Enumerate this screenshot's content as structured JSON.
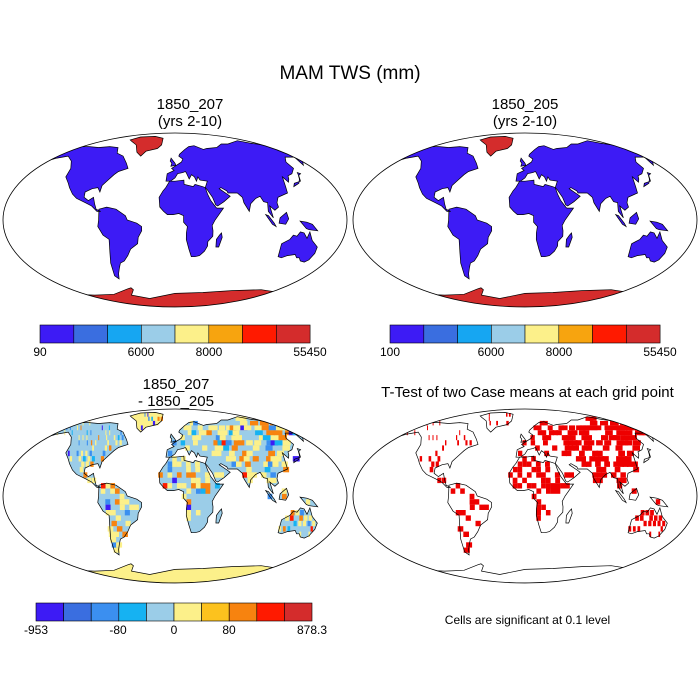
{
  "title": "MAM TWS (mm)",
  "panels": [
    {
      "id": "p1",
      "title_lines": [
        "1850_207",
        "(yrs 2-10)"
      ]
    },
    {
      "id": "p2",
      "title_lines": [
        "1850_205",
        "(yrs 2-10)"
      ]
    },
    {
      "id": "p3",
      "title_lines": [
        "1850_207",
        "- 1850_205"
      ]
    },
    {
      "id": "p4",
      "title_lines": [
        "T-Test of two Case means at each grid point"
      ]
    }
  ],
  "significance_note": "Cells are significant at 0.1 level",
  "chart_data": [
    {
      "type": "heatmap",
      "title": "1850_207 (yrs 2-10)",
      "colorbar": {
        "colors": [
          "#3d1bf5",
          "#3a6ee0",
          "#16a6f2",
          "#9bcde8",
          "#fcf08a",
          "#f7a40f",
          "#ff1a00",
          "#d42c2c"
        ],
        "tick_labels": [
          "90",
          "6000",
          "8000",
          "55450"
        ]
      }
    },
    {
      "type": "heatmap",
      "title": "1850_205 (yrs 2-10)",
      "colorbar": {
        "colors": [
          "#3d1bf5",
          "#3a6ee0",
          "#16a6f2",
          "#9bcde8",
          "#fcf08a",
          "#f7a40f",
          "#ff1a00",
          "#d42c2c"
        ],
        "tick_labels": [
          "100",
          "6000",
          "8000",
          "55450"
        ]
      }
    },
    {
      "type": "heatmap",
      "title": "1850_207 - 1850_205",
      "colorbar": {
        "colors": [
          "#3d1bf5",
          "#3a6ee0",
          "#3b8ff0",
          "#16b2f2",
          "#9bcde8",
          "#fcf08a",
          "#fcc21e",
          "#f7830f",
          "#ff1a00",
          "#d42c2c"
        ],
        "tick_labels": [
          "-953",
          "-80",
          "0",
          "80",
          "878.3"
        ]
      }
    },
    {
      "type": "heatmap",
      "title": "T-Test of two Case means at each grid point",
      "significant_color": "#ff0000"
    }
  ],
  "colors": {
    "land_high": "#3d1bf5",
    "ice": "#d42c2c",
    "diff_base": "#9bcde8",
    "diff_dry": "#fcf08a",
    "diff_neg": "#f7830f",
    "diff_pos": "#3b8ff0",
    "signif": "#ee0000"
  }
}
